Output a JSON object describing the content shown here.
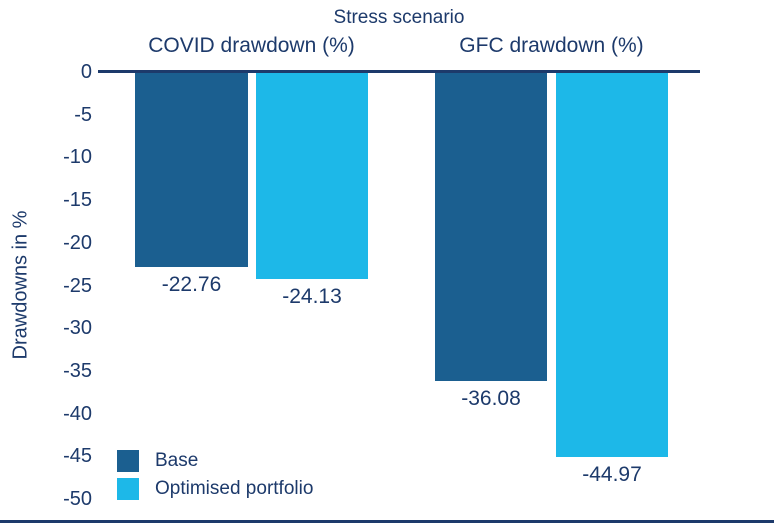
{
  "chart_data": {
    "type": "bar",
    "title": "Stress scenario",
    "categories": [
      "COVID drawdown (%)",
      "GFC drawdown (%)"
    ],
    "series": [
      {
        "name": "Base",
        "color": "#1b5f90",
        "values": [
          -22.76,
          -36.08
        ]
      },
      {
        "name": "Optimised portfolio",
        "color": "#1db8e8",
        "values": [
          -24.13,
          -44.97
        ]
      }
    ],
    "data_labels": [
      [
        "-22.76",
        "-36.08"
      ],
      [
        "-24.13",
        "-44.97"
      ]
    ],
    "ylabel": "Drawdowns in %",
    "ylim": [
      -50,
      0
    ],
    "ytick_step": -5,
    "yticks": [
      "0",
      "-5",
      "-10",
      "-15",
      "-20",
      "-25",
      "-30",
      "-35",
      "-40",
      "-45",
      "-50"
    ],
    "grid": false,
    "legend_position": "bottom-left",
    "colors": {
      "text": "#1d3a6b",
      "axis": "#1d3a6b",
      "background": "#ffffff"
    }
  }
}
